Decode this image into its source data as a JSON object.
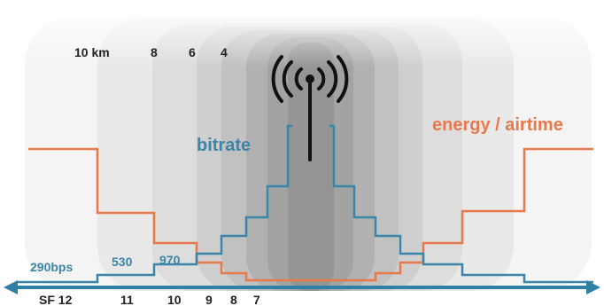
{
  "distance_labels": [
    "10 km",
    "8",
    "6",
    "4"
  ],
  "sf_labels": [
    "SF 12",
    "11",
    "10",
    "9",
    "8",
    "7"
  ],
  "bitrate_values": [
    "290bps",
    "530",
    "970"
  ],
  "series_labels": {
    "bitrate": "bitrate",
    "energy": "energy / airtime"
  },
  "icons": {
    "tower": "radio-tower-icon",
    "axis": "double-arrow-icon"
  },
  "colors": {
    "bitrate": "#3a86a8",
    "energy": "#e8794a",
    "axis": "#2f7fa6",
    "text": "#222222"
  }
}
